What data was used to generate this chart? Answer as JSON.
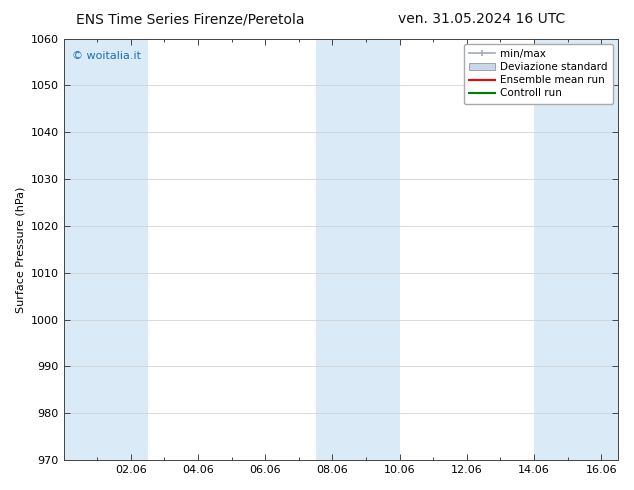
{
  "title_left": "ENS Time Series Firenze/Peretola",
  "title_right": "ven. 31.05.2024 16 UTC",
  "ylabel": "Surface Pressure (hPa)",
  "ylim": [
    970,
    1060
  ],
  "yticks": [
    970,
    980,
    990,
    1000,
    1010,
    1020,
    1030,
    1040,
    1050,
    1060
  ],
  "xlim": [
    0.0,
    16.5
  ],
  "xtick_labels": [
    "02.06",
    "04.06",
    "06.06",
    "08.06",
    "10.06",
    "12.06",
    "14.06",
    "16.06"
  ],
  "xtick_positions": [
    2.0,
    4.0,
    6.0,
    8.0,
    10.0,
    12.0,
    14.0,
    16.0
  ],
  "shade_bands": [
    {
      "xmin": 0.0,
      "xmax": 1.0,
      "color": "#daeaf7"
    },
    {
      "xmin": 1.0,
      "xmax": 2.5,
      "color": "#daeaf7"
    },
    {
      "xmin": 7.5,
      "xmax": 9.0,
      "color": "#daeaf7"
    },
    {
      "xmin": 9.0,
      "xmax": 10.0,
      "color": "#daeaf7"
    },
    {
      "xmin": 14.0,
      "xmax": 15.5,
      "color": "#daeaf7"
    },
    {
      "xmin": 15.5,
      "xmax": 16.5,
      "color": "#daeaf7"
    }
  ],
  "watermark": "© woitalia.it",
  "watermark_color": "#1a6fc4",
  "background_color": "#ffffff",
  "plot_bg_color": "#ffffff",
  "legend_items": [
    {
      "label": "min/max",
      "color": "#a0aab8",
      "type": "errorbar"
    },
    {
      "label": "Deviazione standard",
      "color": "#c8d8e8",
      "type": "rect"
    },
    {
      "label": "Ensemble mean run",
      "color": "#ff0000",
      "type": "line"
    },
    {
      "label": "Controll run",
      "color": "#008000",
      "type": "line"
    }
  ],
  "title_fontsize": 10,
  "axis_label_fontsize": 8,
  "tick_fontsize": 8,
  "legend_fontsize": 7.5,
  "watermark_fontsize": 8
}
